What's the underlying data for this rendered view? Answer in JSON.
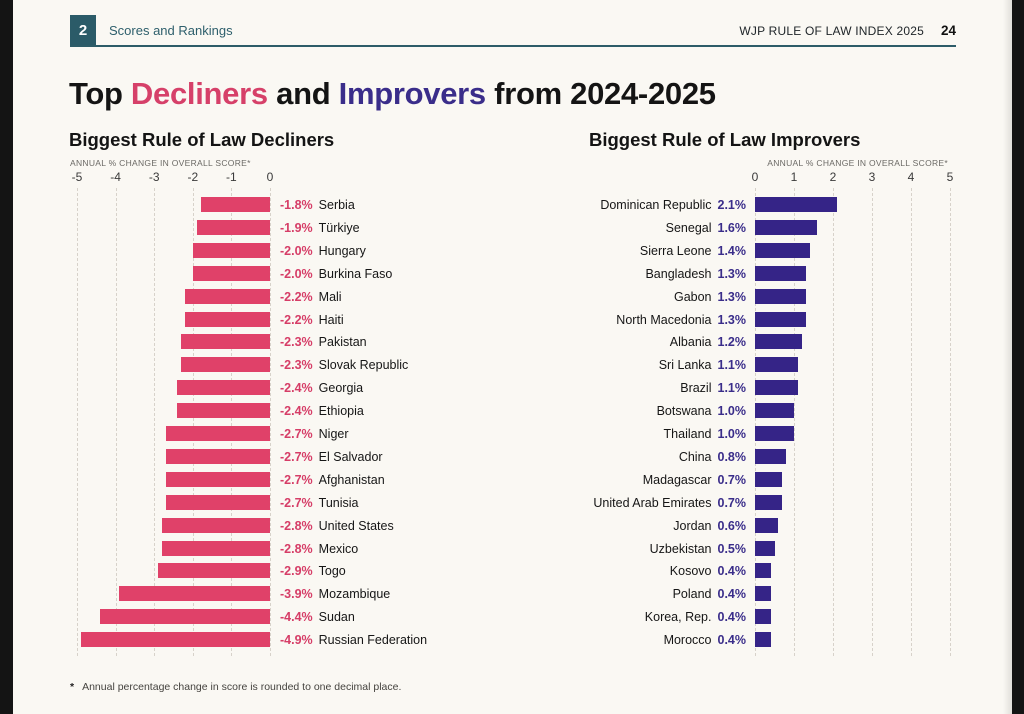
{
  "header": {
    "chapter_number": "2",
    "chapter_title": "Scores and Rankings",
    "report_title": "WJP RULE OF LAW INDEX 2025",
    "page_number": "24"
  },
  "title": {
    "parts": [
      {
        "text": "Top ",
        "color": "#141414"
      },
      {
        "text": "Decliners",
        "color": "#d64069"
      },
      {
        "text": " and ",
        "color": "#141414"
      },
      {
        "text": "Improvers",
        "color": "#3a2d8a"
      },
      {
        "text": " from 2024-2025",
        "color": "#141414"
      }
    ]
  },
  "colors": {
    "decliner_bar": "#e04169",
    "decliner_value_text": "#d63d67",
    "improver_bar": "#352487",
    "improver_value_text": "#3a2d8a",
    "header_teal": "#2d5c68",
    "page_background": "#faf8f3"
  },
  "chart_data": [
    {
      "type": "bar",
      "orientation": "horizontal",
      "title": "Biggest Rule of Law Decliners",
      "axis_label": "ANNUAL % CHANGE IN OVERALL SCORE*",
      "xlim": [
        -5,
        0
      ],
      "ticks": [
        -5,
        -4,
        -3,
        -2,
        -1,
        0
      ],
      "grid": true,
      "categories": [
        "Serbia",
        "Türkiye",
        "Hungary",
        "Burkina Faso",
        "Mali",
        "Haiti",
        "Pakistan",
        "Slovak Republic",
        "Georgia",
        "Ethiopia",
        "Niger",
        "El Salvador",
        "Afghanistan",
        "Tunisia",
        "United States",
        "Mexico",
        "Togo",
        "Mozambique",
        "Sudan",
        "Russian Federation"
      ],
      "values": [
        -1.8,
        -1.9,
        -2.0,
        -2.0,
        -2.2,
        -2.2,
        -2.3,
        -2.3,
        -2.4,
        -2.4,
        -2.7,
        -2.7,
        -2.7,
        -2.7,
        -2.8,
        -2.8,
        -2.9,
        -3.9,
        -4.4,
        -4.9
      ],
      "value_labels": [
        "-1.8%",
        "-1.9%",
        "-2.0%",
        "-2.0%",
        "-2.2%",
        "-2.2%",
        "-2.3%",
        "-2.3%",
        "-2.4%",
        "-2.4%",
        "-2.7%",
        "-2.7%",
        "-2.7%",
        "-2.7%",
        "-2.8%",
        "-2.8%",
        "-2.9%",
        "-3.9%",
        "-4.4%",
        "-4.9%"
      ]
    },
    {
      "type": "bar",
      "orientation": "horizontal",
      "title": "Biggest Rule of Law Improvers",
      "axis_label": "ANNUAL % CHANGE IN OVERALL SCORE*",
      "xlim": [
        0,
        5
      ],
      "ticks": [
        0,
        1,
        2,
        3,
        4,
        5
      ],
      "grid": true,
      "categories": [
        "Dominican Republic",
        "Senegal",
        "Sierra Leone",
        "Bangladesh",
        "Gabon",
        "North Macedonia",
        "Albania",
        "Sri Lanka",
        "Brazil",
        "Botswana",
        "Thailand",
        "China",
        "Madagascar",
        "United Arab Emirates",
        "Jordan",
        "Uzbekistan",
        "Kosovo",
        "Poland",
        "Korea, Rep.",
        "Morocco"
      ],
      "values": [
        2.1,
        1.6,
        1.4,
        1.3,
        1.3,
        1.3,
        1.2,
        1.1,
        1.1,
        1.0,
        1.0,
        0.8,
        0.7,
        0.7,
        0.6,
        0.5,
        0.4,
        0.4,
        0.4,
        0.4
      ],
      "value_labels": [
        "2.1%",
        "1.6%",
        "1.4%",
        "1.3%",
        "1.3%",
        "1.3%",
        "1.2%",
        "1.1%",
        "1.1%",
        "1.0%",
        "1.0%",
        "0.8%",
        "0.7%",
        "0.7%",
        "0.6%",
        "0.5%",
        "0.4%",
        "0.4%",
        "0.4%",
        "0.4%"
      ]
    }
  ],
  "footnote": {
    "marker": "*",
    "text": "Annual percentage change in score is rounded to one decimal place."
  }
}
